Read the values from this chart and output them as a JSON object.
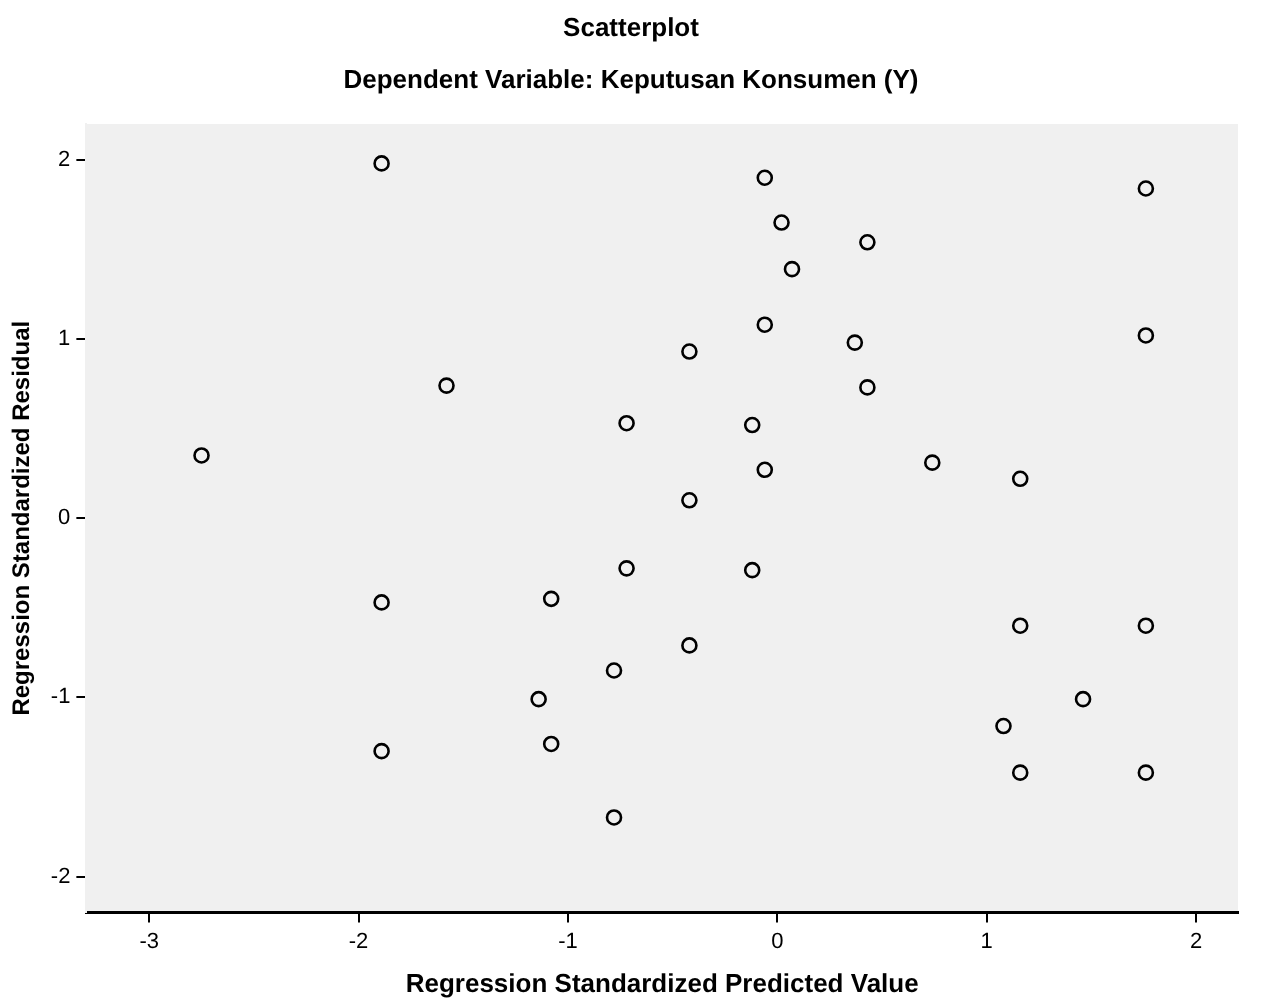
{
  "chart_data": {
    "type": "scatter",
    "title": "Scatterplot",
    "subtitle": "Dependent Variable: Keputusan Konsumen (Y)",
    "xlabel": "Regression Standardized Predicted Value",
    "ylabel": "Regression Standardized Residual",
    "x": [
      -2.75,
      -1.89,
      -1.58,
      -0.06,
      0.02,
      0.43,
      0.07,
      1.76,
      -0.06,
      -0.42,
      0.37,
      1.76,
      0.43,
      -0.72,
      -0.12,
      0.74,
      -0.06,
      1.16,
      -0.42,
      -0.72,
      -0.12,
      1.16,
      1.76,
      -0.42,
      -0.78,
      1.46,
      1.08,
      1.16,
      1.76,
      -0.78,
      -1.89,
      -1.08,
      -1.14,
      -1.08,
      -1.89
    ],
    "values": [
      0.35,
      1.98,
      0.74,
      1.9,
      1.65,
      1.54,
      1.39,
      1.84,
      1.08,
      0.93,
      0.98,
      1.02,
      0.73,
      0.53,
      0.52,
      0.31,
      0.27,
      0.22,
      0.1,
      -0.28,
      -0.29,
      -0.6,
      -0.6,
      -0.71,
      -0.85,
      -1.01,
      -1.16,
      -1.42,
      -1.42,
      -1.67,
      -0.47,
      -0.45,
      -1.01,
      -1.26,
      -1.3
    ],
    "color": "#000000",
    "marker": "circle",
    "xlim": [
      -3.3,
      2.2
    ],
    "xticks": [
      -3,
      -2,
      -1,
      0,
      1,
      2
    ],
    "ylim": [
      -2.2,
      2.2
    ],
    "yticks": [
      -2,
      -1,
      0,
      1,
      2
    ],
    "grid": false,
    "legend": false
  }
}
